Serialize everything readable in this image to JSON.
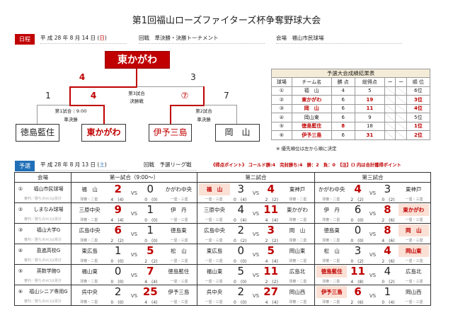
{
  "title": "第1回福山ローズファイターズ杯争奪野球大会",
  "day2": {
    "tag": "日程",
    "date": "平 成 28 年 8 月 14 日 (",
    "dow": "日",
    "close": ")",
    "round_label": "回戦",
    "round": "準決勝・決勝トーナメント",
    "venue_label": "会場",
    "venue": "福山市民球場"
  },
  "bracket": {
    "champion": "東かがわ",
    "final": {
      "label1": "第3試合",
      "label2": "決勝戦",
      "left_score": "4",
      "right_score": "3"
    },
    "semi1": {
      "label1": "第1試合｜9:00",
      "label2": "準決勝",
      "left_team": "徳島藍住",
      "left_score": "1",
      "right_team": "東かがわ",
      "right_score": "4"
    },
    "semi2": {
      "label1": "第2試合",
      "label2": "準決勝",
      "left_team": "伊予三島",
      "left_score": "⑦",
      "right_team": "岡　山",
      "right_score": "7"
    }
  },
  "summary": {
    "caption": "予選大会成績結果表",
    "headers": [
      "球場",
      "チーム名",
      "勝 点",
      "総得点",
      "ー",
      "ー",
      "順 位"
    ],
    "rows": [
      {
        "no": "①",
        "team": "福　山",
        "pts": "4",
        "runs": "5",
        "rank": "6位",
        "hl_team": false,
        "hl_pts": false,
        "hl_runs": false,
        "hl_rank": false
      },
      {
        "no": "②",
        "team": "東かがわ",
        "pts": "6",
        "runs": "19",
        "rank": "3位",
        "hl_team": true,
        "hl_pts": false,
        "hl_runs": true,
        "hl_rank": true
      },
      {
        "no": "③",
        "team": "岡　山",
        "pts": "6",
        "runs": "11",
        "rank": "4位",
        "hl_team": true,
        "hl_pts": false,
        "hl_runs": true,
        "hl_rank": true
      },
      {
        "no": "④",
        "team": "岡山東",
        "pts": "6",
        "runs": "9",
        "rank": "5位",
        "hl_team": false,
        "hl_pts": false,
        "hl_runs": false,
        "hl_rank": false
      },
      {
        "no": "⑤",
        "team": "徳島藍住",
        "pts": "8",
        "runs": "18",
        "rank": "1位",
        "hl_team": true,
        "hl_pts": true,
        "hl_runs": false,
        "hl_rank": true
      },
      {
        "no": "⑥",
        "team": "伊予三島",
        "pts": "6",
        "runs": "31",
        "rank": "2位",
        "hl_team": true,
        "hl_pts": false,
        "hl_runs": true,
        "hl_rank": true
      }
    ],
    "note": "※ 優先順位は左から順に決定"
  },
  "day1": {
    "tag": "予選",
    "date": "平 成 28 年 8 月 13 日 (",
    "dow": "土",
    "close": ")",
    "round_label": "回戦",
    "round": "予選リーグ戦",
    "points_note": "《得点ポイント》 コールド勝:4　完封勝ち:4　勝：2　負：0　【注】() 内は合計獲得ポイント"
  },
  "prelim": {
    "headers": [
      "会場",
      "第一試合（9:00～）",
      "第二試合",
      "第三試合"
    ],
    "vs": "VS",
    "sub_label": "審判／勝ち点※()は累計",
    "rows": [
      {
        "no": "①",
        "venue": "福山市民球場",
        "games": [
          {
            "l": "福　山",
            "ls": "2",
            "rs": "0",
            "r": "かがわ中央",
            "win": "l",
            "lhl": false,
            "rhl": false,
            "lu": "球審・二塁",
            "lp": "4　(4)",
            "rp": "0　(0)",
            "ru": "一塁・三塁"
          },
          {
            "l": "福　山",
            "ls": "3",
            "rs": "4",
            "r": "東神戸",
            "win": "r",
            "lhl": true,
            "rhl": false,
            "lu": "一塁・三塁",
            "lp": "0　(4)",
            "rp": "2　(2)",
            "ru": "球審・二塁"
          },
          {
            "l": "かがわ中央",
            "ls": "4",
            "rs": "3",
            "r": "東神戸",
            "win": "l",
            "lhl": false,
            "rhl": false,
            "lu": "球審・二塁",
            "lp": "2　(2)",
            "rp": "0　(2)",
            "ru": "一塁・三塁"
          }
        ]
      },
      {
        "no": "②",
        "venue": "しまなみ球場",
        "games": [
          {
            "l": "三原中央",
            "ls": "9",
            "rs": "1",
            "r": "伊　丹",
            "win": "l",
            "lhl": false,
            "rhl": false,
            "lu": "球審・二塁",
            "lp": "4　(4)",
            "rp": "0　(0)",
            "ru": "一塁・三塁"
          },
          {
            "l": "三原中央",
            "ls": "4",
            "rs": "11",
            "r": "東かがわ",
            "win": "r",
            "lhl": false,
            "rhl": false,
            "lu": "一塁・三塁",
            "lp": "0　(4)",
            "rp": "4　(4)",
            "ru": "球審・二塁"
          },
          {
            "l": "伊　丹",
            "ls": "6",
            "rs": "8",
            "r": "東かがわ",
            "win": "r",
            "lhl": false,
            "rhl": true,
            "lu": "球審・二塁",
            "lp": "0　(0)",
            "rp": "2　(6)",
            "ru": "一塁・三塁"
          }
        ]
      },
      {
        "no": "③",
        "venue": "福山大学G",
        "games": [
          {
            "l": "広島中央",
            "ls": "6",
            "rs": "1",
            "r": "徳島東",
            "win": "l",
            "lhl": false,
            "rhl": false,
            "lu": "球審・二塁",
            "lp": "2　(2)",
            "rp": "0　(0)",
            "ru": "一塁・三塁"
          },
          {
            "l": "広島中央",
            "ls": "2",
            "rs": "3",
            "r": "岡　山",
            "win": "r",
            "lhl": false,
            "rhl": false,
            "lu": "一塁・三塁",
            "lp": "0　(2)",
            "rp": "2　(2)",
            "ru": "球審・二塁"
          },
          {
            "l": "徳島東",
            "ls": "0",
            "rs": "8",
            "r": "岡　山",
            "win": "r",
            "lhl": false,
            "rhl": true,
            "lu": "球審・二塁",
            "lp": "0　(0)",
            "rp": "4　(6)",
            "ru": "一塁・三塁"
          }
        ]
      },
      {
        "no": "④",
        "venue": "盈進高校G",
        "games": [
          {
            "l": "東広島",
            "ls": "1",
            "rs": "5",
            "r": "松　山",
            "win": "r",
            "lhl": false,
            "rhl": false,
            "lu": "球審・二塁",
            "lp": "0　(0)",
            "rp": "2　(2)",
            "ru": "一塁・三塁"
          },
          {
            "l": "東広島",
            "ls": "0",
            "rs": "5",
            "r": "岡山東",
            "win": "r",
            "lhl": false,
            "rhl": false,
            "lu": "一塁・三塁",
            "lp": "0　(0)",
            "rp": "4　(4)",
            "ru": "球審・二塁"
          },
          {
            "l": "松　山",
            "ls": "3",
            "rs": "4",
            "r": "岡山東",
            "win": "r",
            "lhl": false,
            "rhl": true,
            "lu": "球審・二塁",
            "lp": "0　(2)",
            "rp": "2　(6)",
            "ru": "一塁・三塁"
          }
        ]
      },
      {
        "no": "⑤",
        "venue": "英数学館G",
        "games": [
          {
            "l": "福山東",
            "ls": "0",
            "rs": "7",
            "r": "徳島藍住",
            "win": "r",
            "lhl": false,
            "rhl": false,
            "lu": "球審・二塁",
            "lp": "0　(0)",
            "rp": "4　(4)",
            "ru": "一塁・三塁"
          },
          {
            "l": "福山東",
            "ls": "5",
            "rs": "11",
            "r": "広島北",
            "win": "r",
            "lhl": false,
            "rhl": false,
            "lu": "一塁・三塁",
            "lp": "0　(0)",
            "rp": "2　(2)",
            "ru": "球審・二塁"
          },
          {
            "l": "徳島藍住",
            "ls": "11",
            "rs": "4",
            "r": "広島北",
            "win": "l",
            "lhl": true,
            "rhl": false,
            "lu": "球審・二塁",
            "lp": "4　(8)",
            "rp": "0　(2)",
            "ru": "一塁・三塁"
          }
        ]
      },
      {
        "no": "⑥",
        "venue": "福山シニア専用G",
        "games": [
          {
            "l": "呉中央",
            "ls": "2",
            "rs": "25",
            "r": "伊予三島",
            "win": "r",
            "lhl": false,
            "rhl": false,
            "lu": "球審・二塁",
            "lp": "0　(0)",
            "rp": "4　(4)",
            "ru": "一塁・三塁"
          },
          {
            "l": "呉中央",
            "ls": "2",
            "rs": "27",
            "r": "岡山西",
            "win": "r",
            "lhl": false,
            "rhl": false,
            "lu": "一塁・三塁",
            "lp": "0　(0)",
            "rp": "4　(4)",
            "ru": "球審・二塁"
          },
          {
            "l": "伊予三島",
            "ls": "6",
            "rs": "1",
            "r": "岡山西",
            "win": "l",
            "lhl": true,
            "rhl": false,
            "lu": "球審・二塁",
            "lp": "2　(6)",
            "rp": "0　(4)",
            "ru": "一塁・三塁"
          }
        ]
      }
    ]
  },
  "colors": {
    "accent_red": "#c00000",
    "accent_blue": "#1f6fb8",
    "highlight": "#fbe0d5"
  }
}
